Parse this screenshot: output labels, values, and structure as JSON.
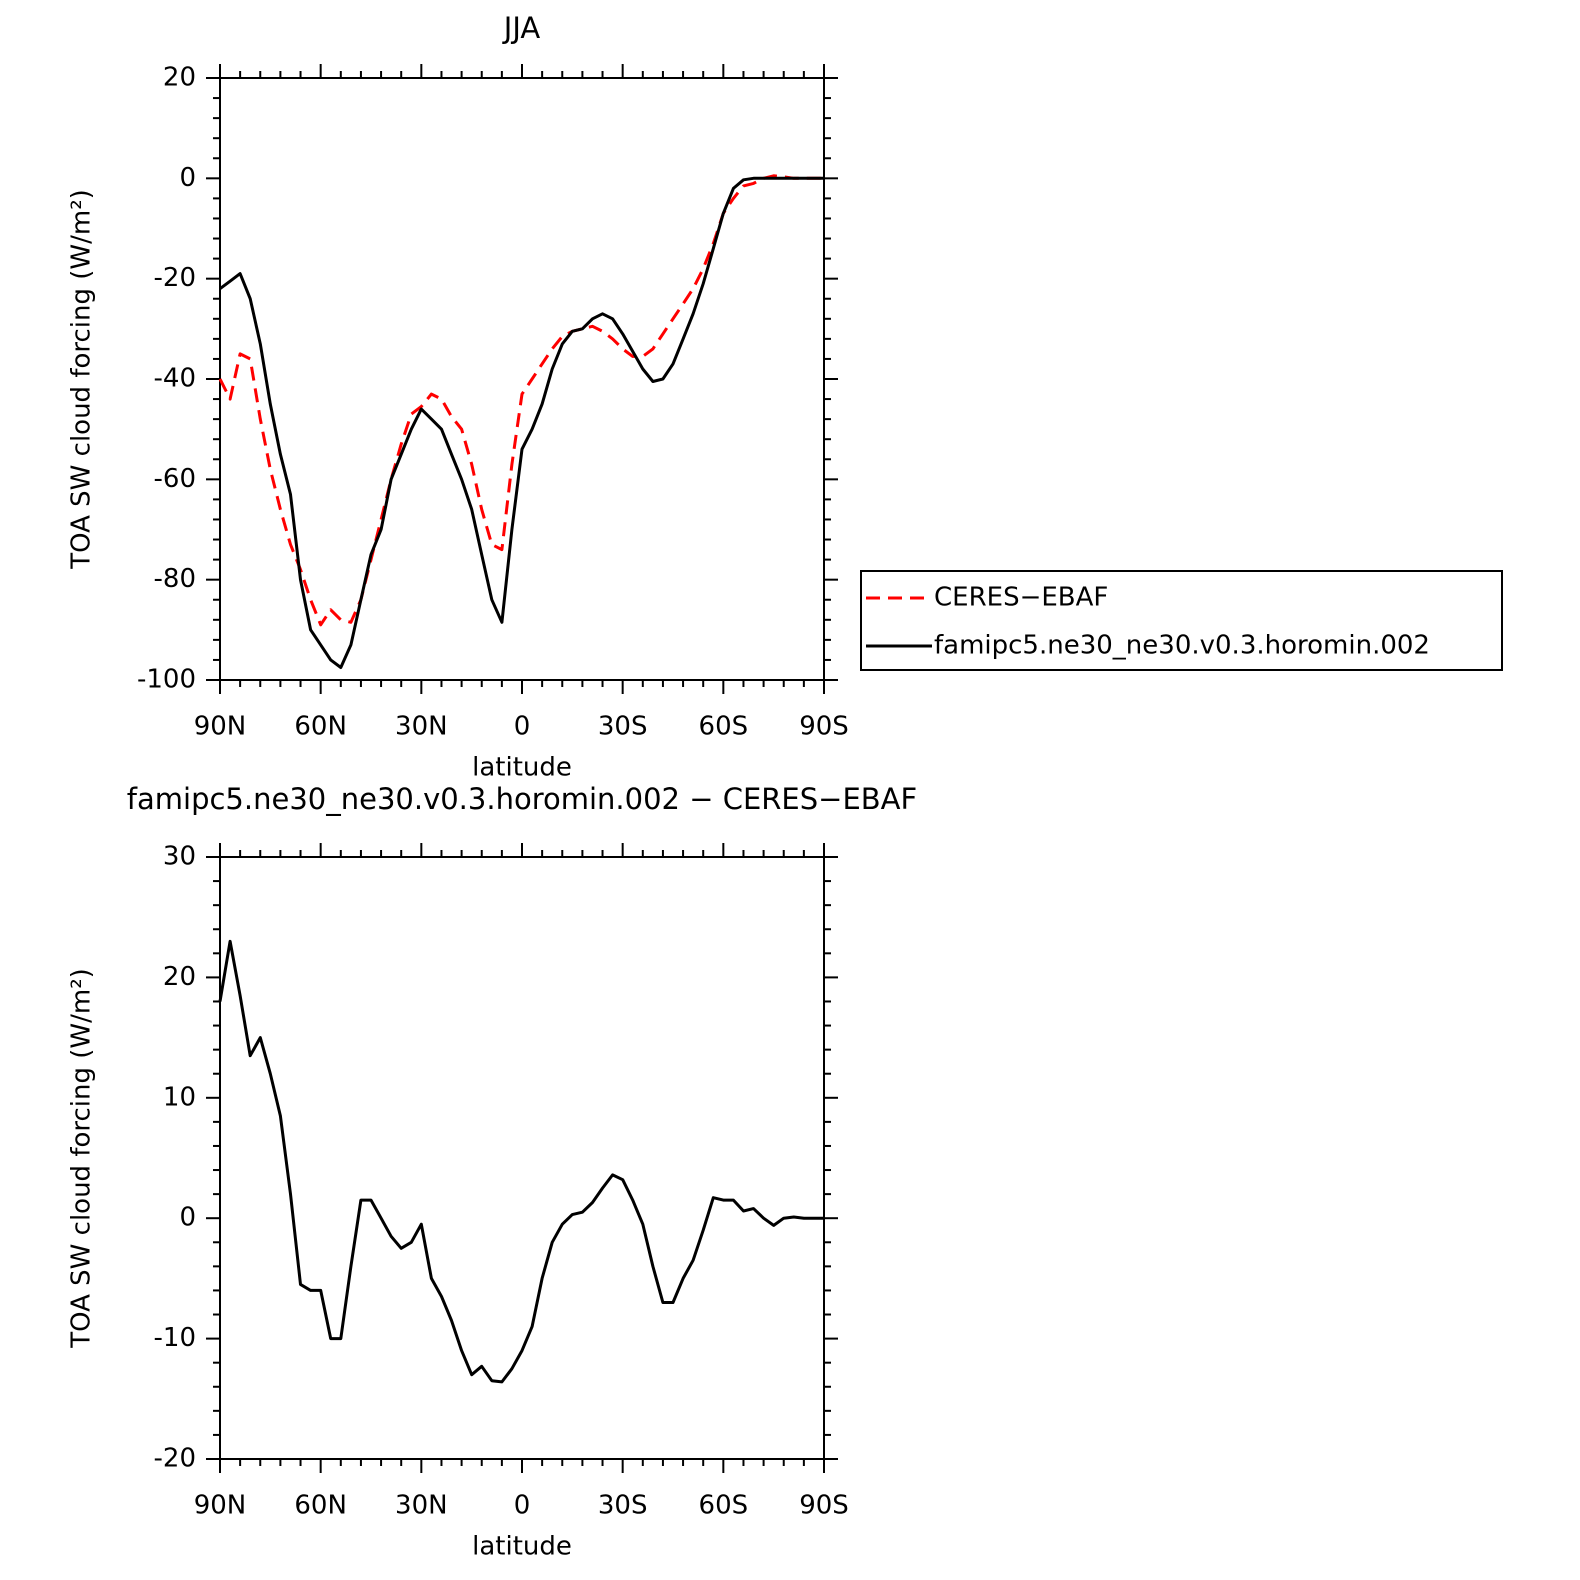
{
  "chart_data": [
    {
      "type": "line",
      "title": "JJA",
      "xlabel": "latitude",
      "ylabel": "TOA SW cloud forcing (W/m²)",
      "x": [
        90,
        87,
        84,
        81,
        78,
        75,
        72,
        69,
        66,
        63,
        60,
        57,
        54,
        51,
        48,
        45,
        42,
        39,
        36,
        33,
        30,
        27,
        24,
        21,
        18,
        15,
        12,
        9,
        6,
        3,
        0,
        -3,
        -6,
        -9,
        -12,
        -15,
        -18,
        -21,
        -24,
        -27,
        -30,
        -33,
        -36,
        -39,
        -42,
        -45,
        -48,
        -51,
        -54,
        -57,
        -60,
        -63,
        -66,
        -69,
        -72,
        -75,
        -78,
        -81,
        -84,
        -87,
        -90
      ],
      "xlim": [
        90,
        -90
      ],
      "xticks": [
        {
          "value": 90,
          "label": "90N"
        },
        {
          "value": 60,
          "label": "60N"
        },
        {
          "value": 30,
          "label": "30N"
        },
        0,
        {
          "value": -30,
          "label": "30S"
        },
        {
          "value": -60,
          "label": "60S"
        },
        {
          "value": -90,
          "label": "90S"
        }
      ],
      "ylim": [
        -100,
        20
      ],
      "yticks": [
        -100,
        -80,
        -60,
        -40,
        -20,
        0,
        20
      ],
      "legend": "right",
      "series": [
        {
          "name": "CERES−EBAF",
          "color": "#ff0000",
          "dashed": true,
          "values": [
            -40,
            -44,
            -35,
            -36,
            -48,
            -58,
            -66,
            -73,
            -78,
            -84,
            -89,
            -86,
            -88,
            -88.5,
            -84,
            -76,
            -68,
            -60,
            -53,
            -47,
            -45.5,
            -43,
            -44,
            -47.5,
            -50,
            -57,
            -66,
            -73,
            -74,
            -57,
            -43,
            -40,
            -37,
            -34,
            -31.5,
            -30.5,
            -30,
            -29.5,
            -30.5,
            -32,
            -34,
            -35.5,
            -35.5,
            -34,
            -31,
            -28,
            -25,
            -22,
            -18,
            -13,
            -7,
            -4,
            -1.5,
            -1,
            0,
            0.5,
            0.3,
            0,
            0,
            0,
            0
          ]
        },
        {
          "name": "famipc5.ne30_ne30.v0.3.horomin.002",
          "color": "#000000",
          "dashed": false,
          "values": [
            -22,
            -20.5,
            -19,
            -24,
            -33,
            -45,
            -55,
            -63,
            -80,
            -90,
            -93,
            -96,
            -97.5,
            -93,
            -84,
            -75,
            -70,
            -60,
            -55,
            -50,
            -46,
            -48,
            -50,
            -55,
            -60,
            -66,
            -75,
            -84,
            -88.5,
            -70,
            -54,
            -50,
            -45,
            -38,
            -33,
            -30.5,
            -30,
            -28,
            -27,
            -28,
            -31,
            -34.5,
            -38,
            -40.5,
            -40,
            -37,
            -32,
            -27,
            -21,
            -14,
            -7,
            -2,
            -0.3,
            0,
            0,
            0,
            0,
            0,
            0,
            0,
            0
          ]
        }
      ]
    },
    {
      "type": "line",
      "title": "famipc5.ne30_ne30.v0.3.horomin.002 − CERES−EBAF",
      "xlabel": "latitude",
      "ylabel": "TOA SW cloud forcing (W/m²)",
      "x": [
        90,
        87,
        84,
        81,
        78,
        75,
        72,
        69,
        66,
        63,
        60,
        57,
        54,
        51,
        48,
        45,
        42,
        39,
        36,
        33,
        30,
        27,
        24,
        21,
        18,
        15,
        12,
        9,
        6,
        3,
        0,
        -3,
        -6,
        -9,
        -12,
        -15,
        -18,
        -21,
        -24,
        -27,
        -30,
        -33,
        -36,
        -39,
        -42,
        -45,
        -48,
        -51,
        -54,
        -57,
        -60,
        -63,
        -66,
        -69,
        -72,
        -75,
        -78,
        -81,
        -84,
        -87,
        -90
      ],
      "xlim": [
        90,
        -90
      ],
      "xticks": [
        {
          "value": 90,
          "label": "90N"
        },
        {
          "value": 60,
          "label": "60N"
        },
        {
          "value": 30,
          "label": "30N"
        },
        0,
        {
          "value": -30,
          "label": "30S"
        },
        {
          "value": -60,
          "label": "60S"
        },
        {
          "value": -90,
          "label": "90S"
        }
      ],
      "ylim": [
        -20,
        30
      ],
      "yticks": [
        -20,
        -10,
        0,
        10,
        20,
        30
      ],
      "series": [
        {
          "color": "#000000",
          "dashed": false,
          "values": [
            18,
            23,
            18.5,
            13.5,
            15,
            12,
            8.5,
            2,
            -5.5,
            -6,
            -6,
            -10,
            -10,
            -4,
            1.5,
            1.5,
            0,
            -1.5,
            -2.5,
            -2,
            -0.5,
            -5,
            -6.5,
            -8.5,
            -11,
            -13,
            -12.3,
            -13.5,
            -13.6,
            -12.5,
            -11,
            -9,
            -5,
            -2,
            -0.5,
            0.3,
            0.5,
            1.3,
            2.5,
            3.6,
            3.2,
            1.5,
            -0.5,
            -4,
            -7,
            -7,
            -5,
            -3.5,
            -1,
            1.7,
            1.5,
            1.5,
            0.6,
            0.8,
            0,
            -0.6,
            0,
            0.1,
            0,
            0,
            0
          ]
        }
      ]
    }
  ]
}
